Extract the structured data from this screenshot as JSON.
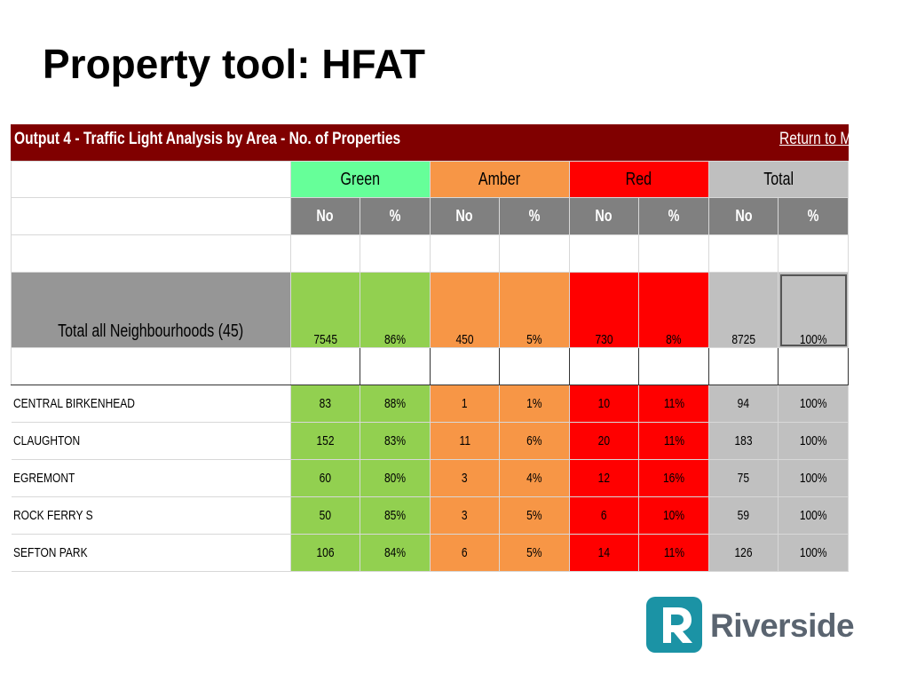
{
  "slide": {
    "title": "Property tool: HFAT"
  },
  "sheet": {
    "banner_title": "Output 4 - Traffic Light Analysis by Area - No. of Properties",
    "return_link": "Return to M",
    "groups": {
      "green": "Green",
      "amber": "Amber",
      "red": "Red",
      "total": "Total"
    },
    "subheaders": [
      "No",
      "%",
      "No",
      "%",
      "No",
      "%",
      "No",
      "%"
    ],
    "total_row": {
      "label": "Total all Neighbourhoods (45)",
      "values": [
        "7545",
        "86%",
        "450",
        "5%",
        "730",
        "8%",
        "8725",
        "100%"
      ]
    },
    "rows": [
      {
        "label": "CENTRAL BIRKENHEAD",
        "values": [
          "83",
          "88%",
          "1",
          "1%",
          "10",
          "11%",
          "94",
          "100%"
        ]
      },
      {
        "label": "CLAUGHTON",
        "values": [
          "152",
          "83%",
          "11",
          "6%",
          "20",
          "11%",
          "183",
          "100%"
        ]
      },
      {
        "label": "EGREMONT",
        "values": [
          "60",
          "80%",
          "3",
          "4%",
          "12",
          "16%",
          "75",
          "100%"
        ]
      },
      {
        "label": "ROCK FERRY S",
        "values": [
          "50",
          "85%",
          "3",
          "5%",
          "6",
          "10%",
          "59",
          "100%"
        ]
      },
      {
        "label": "SEFTON PARK",
        "values": [
          "106",
          "84%",
          "6",
          "5%",
          "14",
          "11%",
          "126",
          "100%"
        ]
      }
    ]
  },
  "logo": {
    "text": "Riverside",
    "color": "#1b93a5"
  }
}
